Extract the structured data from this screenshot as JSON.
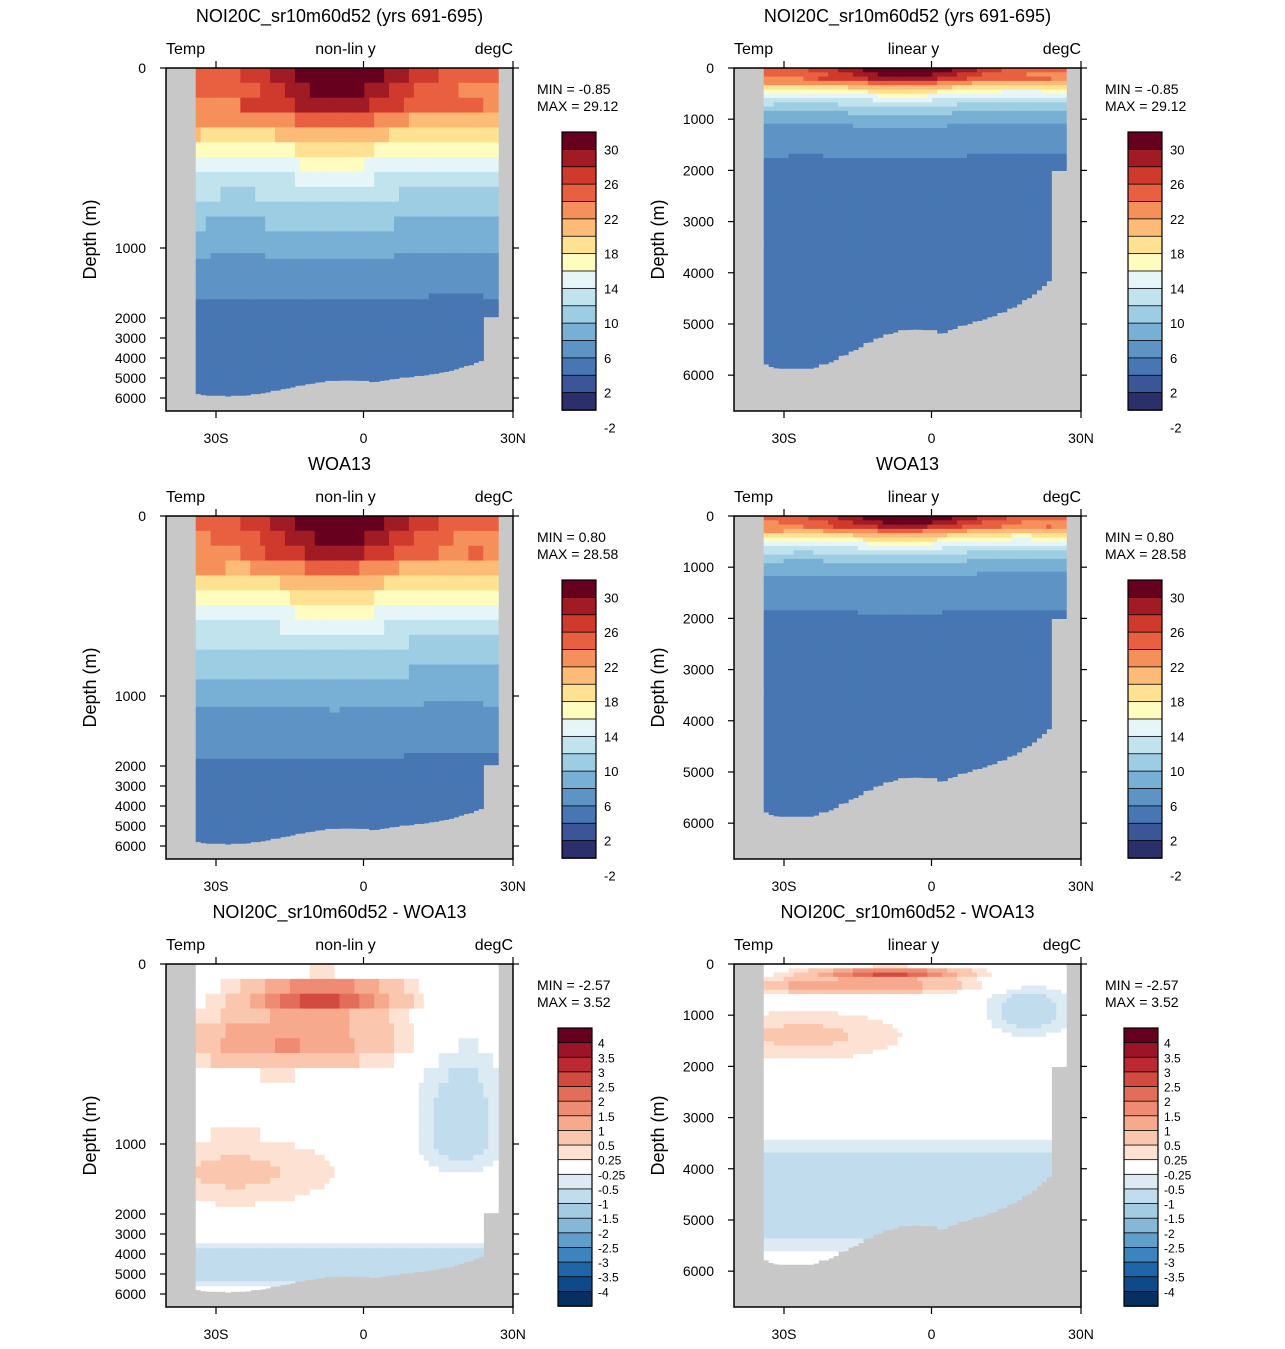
{
  "chart_data": [
    {
      "type": "heatmap",
      "title": "NOI20C_sr10m60d52 (yrs 691-695)",
      "left_label": "Temp",
      "center_label": "non-lin y",
      "right_label": "degC",
      "ylabel": "Depth (m)",
      "y_scale": "non-linear",
      "x_ticks": [
        "30S",
        "0",
        "30N"
      ],
      "y_ticks": [
        "0",
        "1000",
        "2000",
        "3000",
        "4000",
        "5000",
        "6000"
      ],
      "min_text": "MIN =  -0.85",
      "max_text": "MAX =  29.12",
      "colorbar": {
        "labels": [
          "30",
          "26",
          "22",
          "18",
          "14",
          "10",
          "6",
          "2",
          "-2"
        ],
        "colors": [
          "#67001f",
          "#a11b25",
          "#cf3a2c",
          "#e8603f",
          "#f6905a",
          "#fcbb76",
          "#fee292",
          "#fefcbe",
          "#e6f5f7",
          "#c0e3ee",
          "#9dcde3",
          "#78b0d5",
          "#5e93c5",
          "#4776b3",
          "#3a5696",
          "#2b2f6a"
        ]
      },
      "field": "temperature_model"
    },
    {
      "type": "heatmap",
      "title": "NOI20C_sr10m60d52 (yrs 691-695)",
      "left_label": "Temp",
      "center_label": "linear y",
      "right_label": "degC",
      "ylabel": "Depth (m)",
      "y_scale": "linear",
      "x_ticks": [
        "30S",
        "0",
        "30N"
      ],
      "y_ticks": [
        "0",
        "1000",
        "2000",
        "3000",
        "4000",
        "5000",
        "6000"
      ],
      "min_text": "MIN =  -0.85",
      "max_text": "MAX =  29.12",
      "colorbar": {
        "labels": [
          "30",
          "26",
          "22",
          "18",
          "14",
          "10",
          "6",
          "2",
          "-2"
        ],
        "colors": [
          "#67001f",
          "#a11b25",
          "#cf3a2c",
          "#e8603f",
          "#f6905a",
          "#fcbb76",
          "#fee292",
          "#fefcbe",
          "#e6f5f7",
          "#c0e3ee",
          "#9dcde3",
          "#78b0d5",
          "#5e93c5",
          "#4776b3",
          "#3a5696",
          "#2b2f6a"
        ]
      },
      "field": "temperature_model"
    },
    {
      "type": "heatmap",
      "title": "WOA13",
      "left_label": "Temp",
      "center_label": "non-lin y",
      "right_label": "degC",
      "ylabel": "Depth (m)",
      "y_scale": "non-linear",
      "x_ticks": [
        "30S",
        "0",
        "30N"
      ],
      "y_ticks": [
        "0",
        "1000",
        "2000",
        "3000",
        "4000",
        "5000",
        "6000"
      ],
      "min_text": "MIN =  0.80",
      "max_text": "MAX =  28.58",
      "colorbar": {
        "labels": [
          "30",
          "26",
          "22",
          "18",
          "14",
          "10",
          "6",
          "2",
          "-2"
        ],
        "colors": [
          "#67001f",
          "#a11b25",
          "#cf3a2c",
          "#e8603f",
          "#f6905a",
          "#fcbb76",
          "#fee292",
          "#fefcbe",
          "#e6f5f7",
          "#c0e3ee",
          "#9dcde3",
          "#78b0d5",
          "#5e93c5",
          "#4776b3",
          "#3a5696",
          "#2b2f6a"
        ]
      },
      "field": "temperature_obs"
    },
    {
      "type": "heatmap",
      "title": "WOA13",
      "left_label": "Temp",
      "center_label": "linear y",
      "right_label": "degC",
      "ylabel": "Depth (m)",
      "y_scale": "linear",
      "x_ticks": [
        "30S",
        "0",
        "30N"
      ],
      "y_ticks": [
        "0",
        "1000",
        "2000",
        "3000",
        "4000",
        "5000",
        "6000"
      ],
      "min_text": "MIN =  0.80",
      "max_text": "MAX =  28.58",
      "colorbar": {
        "labels": [
          "30",
          "26",
          "22",
          "18",
          "14",
          "10",
          "6",
          "2",
          "-2"
        ],
        "colors": [
          "#67001f",
          "#a11b25",
          "#cf3a2c",
          "#e8603f",
          "#f6905a",
          "#fcbb76",
          "#fee292",
          "#fefcbe",
          "#e6f5f7",
          "#c0e3ee",
          "#9dcde3",
          "#78b0d5",
          "#5e93c5",
          "#4776b3",
          "#3a5696",
          "#2b2f6a"
        ]
      },
      "field": "temperature_obs"
    },
    {
      "type": "heatmap",
      "title": "NOI20C_sr10m60d52 - WOA13",
      "left_label": "Temp",
      "center_label": "non-lin y",
      "right_label": "degC",
      "ylabel": "Depth (m)",
      "y_scale": "non-linear",
      "x_ticks": [
        "30S",
        "0",
        "30N"
      ],
      "y_ticks": [
        "0",
        "1000",
        "2000",
        "3000",
        "4000",
        "5000",
        "6000"
      ],
      "min_text": "MIN =  -2.57",
      "max_text": "MAX =   3.52",
      "colorbar": {
        "labels": [
          "4",
          "3.5",
          "3",
          "2.5",
          "2",
          "1.5",
          "1",
          "0.5",
          "0.25",
          "-0.25",
          "-0.5",
          "-1",
          "-1.5",
          "-2",
          "-2.5",
          "-3",
          "-3.5",
          "-4"
        ],
        "colors": [
          "#67001f",
          "#9b1428",
          "#bb2a33",
          "#d14b40",
          "#e26d58",
          "#ef8b72",
          "#f6a98c",
          "#fac6ad",
          "#fde2d3",
          "#ffffff",
          "#dcebf3",
          "#c1dcec",
          "#a3cbe2",
          "#84b7d8",
          "#609ecb",
          "#3c84bc",
          "#1f66a8",
          "#0e4a8a",
          "#053061"
        ]
      },
      "field": "temperature_diff"
    },
    {
      "type": "heatmap",
      "title": "NOI20C_sr10m60d52 - WOA13",
      "left_label": "Temp",
      "center_label": "linear y",
      "right_label": "degC",
      "ylabel": "Depth (m)",
      "y_scale": "linear",
      "x_ticks": [
        "30S",
        "0",
        "30N"
      ],
      "y_ticks": [
        "0",
        "1000",
        "2000",
        "3000",
        "4000",
        "5000",
        "6000"
      ],
      "min_text": "MIN =  -2.57",
      "max_text": "MAX =   3.52",
      "colorbar": {
        "labels": [
          "4",
          "3.5",
          "3",
          "2.5",
          "2",
          "1.5",
          "1",
          "0.5",
          "0.25",
          "-0.25",
          "-0.5",
          "-1",
          "-1.5",
          "-2",
          "-2.5",
          "-3",
          "-3.5",
          "-4"
        ],
        "colors": [
          "#67001f",
          "#9b1428",
          "#bb2a33",
          "#d14b40",
          "#e26d58",
          "#ef8b72",
          "#f6a98c",
          "#fac6ad",
          "#fde2d3",
          "#ffffff",
          "#dcebf3",
          "#c1dcec",
          "#a3cbe2",
          "#84b7d8",
          "#609ecb",
          "#3c84bc",
          "#1f66a8",
          "#0e4a8a",
          "#053061"
        ]
      },
      "field": "temperature_diff"
    }
  ]
}
